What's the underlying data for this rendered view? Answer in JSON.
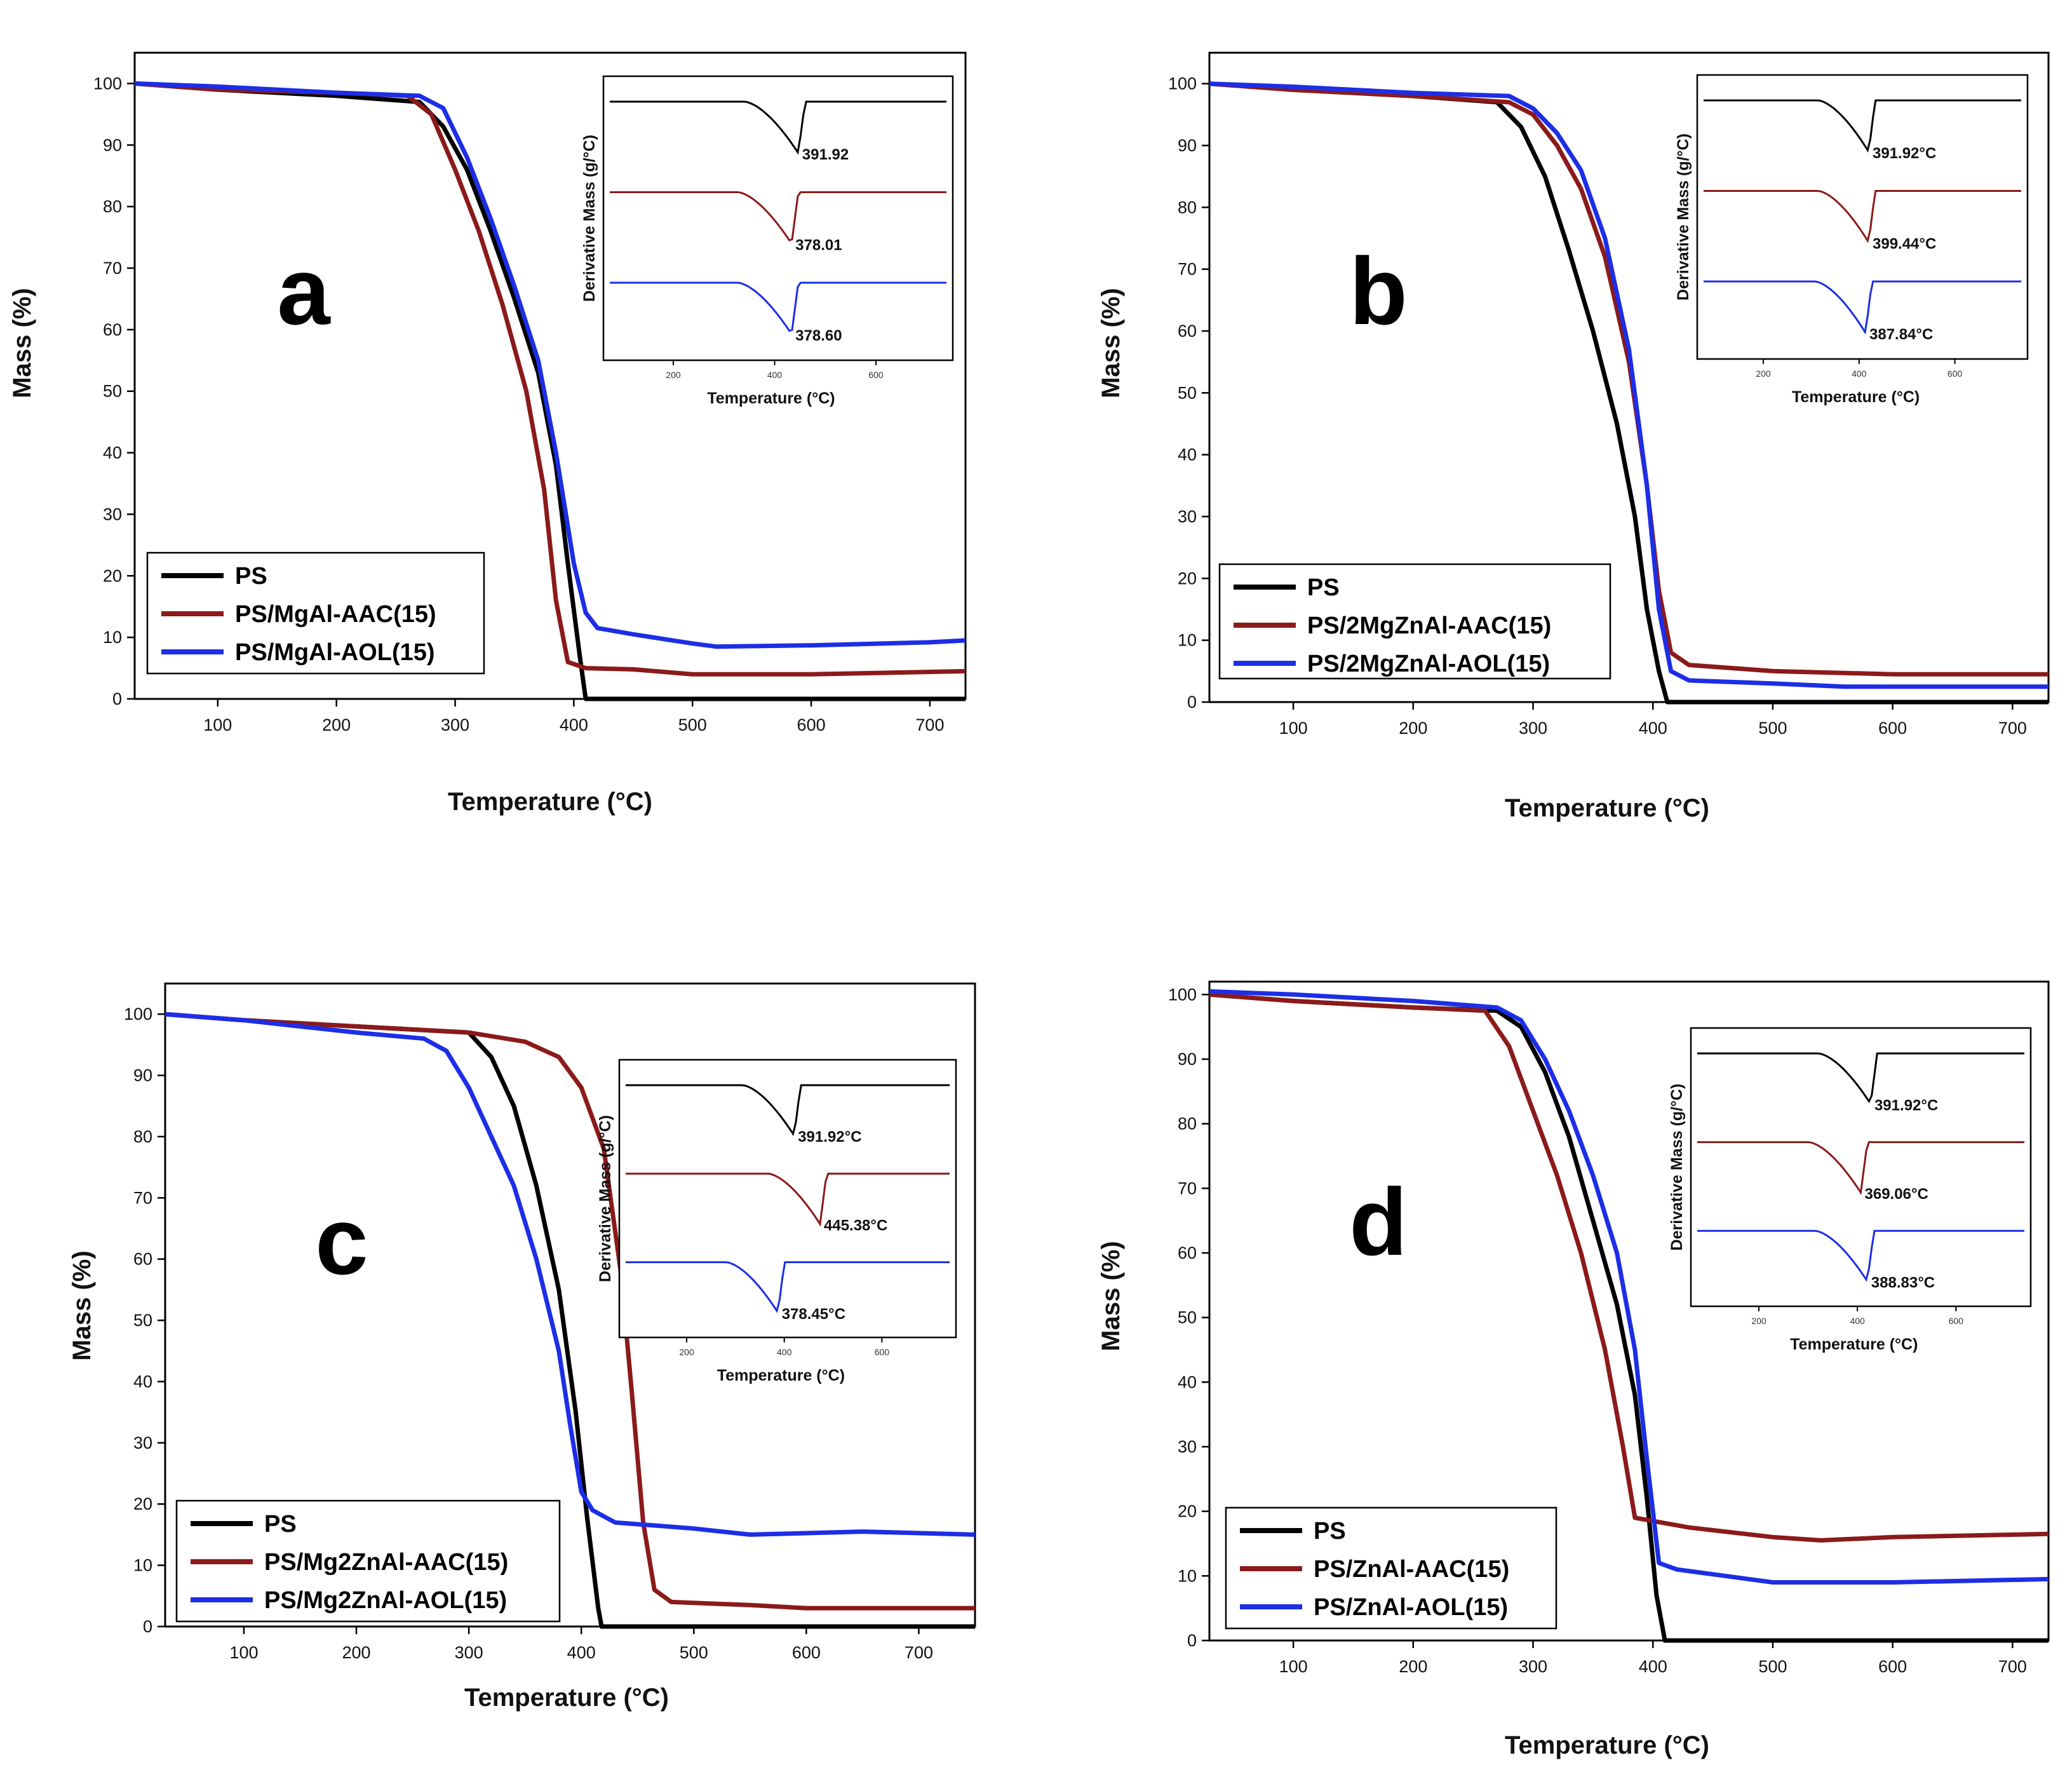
{
  "chart_data": [
    {
      "type": "line",
      "panel_label": "a",
      "xlabel": "Temperature (°C)",
      "ylabel": "Mass (%)",
      "xlim": [
        30,
        730
      ],
      "ylim": [
        0,
        105
      ],
      "xticks": [
        100,
        200,
        300,
        400,
        500,
        600,
        700
      ],
      "yticks": [
        0,
        10,
        20,
        30,
        40,
        50,
        60,
        70,
        80,
        90,
        100
      ],
      "legend_position": "bottom-left",
      "series": [
        {
          "name": "PS",
          "color": "#000000",
          "x": [
            30,
            100,
            200,
            270,
            290,
            310,
            330,
            350,
            370,
            385,
            395,
            405,
            410,
            730
          ],
          "y": [
            100,
            99,
            98,
            97,
            93,
            86,
            76,
            65,
            53,
            38,
            22,
            7,
            0,
            0
          ]
        },
        {
          "name": "PS/MgAl-AAC(15)",
          "color": "#8b1a1a",
          "x": [
            30,
            100,
            200,
            260,
            280,
            300,
            320,
            340,
            360,
            375,
            385,
            395,
            410,
            450,
            500,
            600,
            730
          ],
          "y": [
            100,
            99,
            98.5,
            98,
            95,
            86,
            76,
            64,
            50,
            34,
            16,
            6,
            5,
            4.8,
            4,
            4,
            4.5
          ]
        },
        {
          "name": "PS/MgAl-AOL(15)",
          "color": "#1c2ee6",
          "x": [
            30,
            100,
            200,
            270,
            290,
            310,
            330,
            350,
            370,
            385,
            400,
            410,
            420,
            450,
            500,
            520,
            600,
            700,
            730
          ],
          "y": [
            100,
            99.5,
            98.5,
            98,
            96,
            88,
            78,
            67,
            55,
            40,
            22,
            14,
            11.5,
            10.5,
            9,
            8.5,
            8.7,
            9.2,
            9.5
          ]
        }
      ],
      "inset": {
        "xlabel": "Temperature (°C)",
        "ylabel": "Derivative Mass (g/°C)",
        "xticks": [
          "200",
          "400",
          "600"
        ],
        "peak_labels": [
          "391.92",
          "378.01",
          "378.60"
        ]
      }
    },
    {
      "type": "line",
      "panel_label": "b",
      "xlabel": "Temperature (°C)",
      "ylabel": "Mass (%)",
      "xlim": [
        30,
        730
      ],
      "ylim": [
        0,
        105
      ],
      "xticks": [
        100,
        200,
        300,
        400,
        500,
        600,
        700
      ],
      "yticks": [
        0,
        10,
        20,
        30,
        40,
        50,
        60,
        70,
        80,
        90,
        100
      ],
      "legend_position": "bottom-left",
      "series": [
        {
          "name": "PS",
          "color": "#000000",
          "x": [
            30,
            100,
            200,
            270,
            290,
            310,
            330,
            350,
            370,
            385,
            395,
            405,
            412,
            730
          ],
          "y": [
            100,
            99,
            98,
            97,
            93,
            85,
            73,
            60,
            45,
            30,
            15,
            5,
            0,
            0
          ]
        },
        {
          "name": "PS/2MgZnAl-AAC(15)",
          "color": "#8b1a1a",
          "x": [
            30,
            100,
            200,
            280,
            300,
            320,
            340,
            360,
            380,
            395,
            405,
            415,
            430,
            500,
            600,
            730
          ],
          "y": [
            100,
            99,
            98,
            97,
            95,
            90,
            83,
            72,
            55,
            35,
            18,
            8,
            6,
            5,
            4.5,
            4.5
          ]
        },
        {
          "name": "PS/2MgZnAl-AOL(15)",
          "color": "#1c2ee6",
          "x": [
            30,
            100,
            200,
            280,
            300,
            320,
            340,
            360,
            380,
            395,
            405,
            415,
            430,
            500,
            560,
            600,
            730
          ],
          "y": [
            100,
            99.5,
            98.5,
            98,
            96,
            92,
            86,
            75,
            57,
            35,
            15,
            5,
            3.5,
            3,
            2.5,
            2.5,
            2.5
          ]
        }
      ],
      "inset": {
        "xlabel": "Temperature (°C)",
        "ylabel": "Derivative Mass (g/°C)",
        "xticks": [
          "200",
          "400",
          "600"
        ],
        "peak_labels": [
          "391.92°C",
          "399.44°C",
          "387.84°C"
        ]
      }
    },
    {
      "type": "line",
      "panel_label": "c",
      "xlabel": "Temperature (°C)",
      "ylabel": "Mass (%)",
      "xlim": [
        30,
        750
      ],
      "ylim": [
        0,
        105
      ],
      "xticks": [
        100,
        200,
        300,
        400,
        500,
        600,
        700
      ],
      "yticks": [
        0,
        10,
        20,
        30,
        40,
        50,
        60,
        70,
        80,
        90,
        100
      ],
      "legend_position": "bottom-left",
      "series": [
        {
          "name": "PS",
          "color": "#000000",
          "x": [
            30,
            100,
            200,
            300,
            320,
            340,
            360,
            380,
            395,
            405,
            415,
            418,
            750
          ],
          "y": [
            100,
            99,
            98,
            97,
            93,
            85,
            72,
            55,
            35,
            18,
            3,
            0,
            0
          ]
        },
        {
          "name": "PS/Mg2ZnAl-AAC(15)",
          "color": "#8b1a1a",
          "x": [
            30,
            100,
            200,
            300,
            350,
            380,
            400,
            420,
            435,
            445,
            455,
            465,
            480,
            550,
            600,
            750
          ],
          "y": [
            100,
            99,
            98,
            97,
            95.5,
            93,
            88,
            78,
            58,
            38,
            17,
            6,
            4,
            3.5,
            3,
            3
          ]
        },
        {
          "name": "PS/Mg2ZnAl-AOL(15)",
          "color": "#1c2ee6",
          "x": [
            30,
            100,
            200,
            260,
            280,
            300,
            320,
            340,
            360,
            380,
            390,
            400,
            410,
            430,
            500,
            550,
            650,
            750
          ],
          "y": [
            100,
            99,
            97,
            96,
            94,
            88,
            80,
            72,
            60,
            45,
            33,
            22,
            19,
            17,
            16,
            15,
            15.5,
            15
          ]
        }
      ],
      "inset": {
        "xlabel": "Temperature (°C)",
        "ylabel": "Derivative Mass (g/°C)",
        "xticks": [
          "200",
          "400",
          "600"
        ],
        "peak_labels": [
          "391.92°C",
          "445.38°C",
          "378.45°C"
        ]
      }
    },
    {
      "type": "line",
      "panel_label": "d",
      "xlabel": "Temperature (°C)",
      "ylabel": "Mass (%)",
      "xlim": [
        30,
        730
      ],
      "ylim": [
        0,
        102
      ],
      "xticks": [
        100,
        200,
        300,
        400,
        500,
        600,
        700
      ],
      "yticks": [
        0,
        10,
        20,
        30,
        40,
        50,
        60,
        70,
        80,
        90,
        100
      ],
      "legend_position": "bottom-left",
      "series": [
        {
          "name": "PS",
          "color": "#000000",
          "x": [
            30,
            100,
            200,
            270,
            290,
            310,
            330,
            350,
            370,
            385,
            395,
            403,
            410,
            730
          ],
          "y": [
            100,
            99,
            98,
            97.5,
            95,
            88,
            78,
            65,
            52,
            38,
            22,
            7,
            0,
            0
          ]
        },
        {
          "name": "PS/ZnAl-AAC(15)",
          "color": "#8b1a1a",
          "x": [
            30,
            100,
            200,
            260,
            280,
            300,
            320,
            340,
            360,
            375,
            385,
            400,
            430,
            500,
            540,
            600,
            730
          ],
          "y": [
            100,
            99,
            98,
            97.5,
            92,
            82,
            72,
            60,
            45,
            30,
            19,
            18.5,
            17.5,
            16,
            15.5,
            16,
            16.5
          ]
        },
        {
          "name": "PS/ZnAl-AOL(15)",
          "color": "#1c2ee6",
          "x": [
            30,
            100,
            200,
            270,
            290,
            310,
            330,
            350,
            370,
            385,
            395,
            405,
            420,
            460,
            500,
            600,
            730
          ],
          "y": [
            100.5,
            100,
            99,
            98,
            96,
            90,
            82,
            72,
            60,
            45,
            28,
            12,
            11,
            10,
            9,
            9,
            9.5
          ]
        }
      ],
      "inset": {
        "xlabel": "Temperature (°C)",
        "ylabel": "Derivative Mass (g/°C)",
        "xticks": [
          "200",
          "400",
          "600"
        ],
        "peak_labels": [
          "391.92°C",
          "369.06°C",
          "388.83°C"
        ]
      }
    }
  ]
}
